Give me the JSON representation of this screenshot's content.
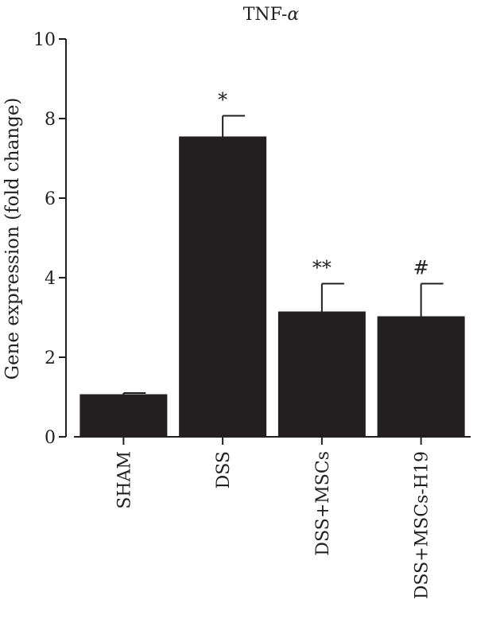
{
  "chart_data": {
    "type": "bar",
    "title_prefix": "TNF-",
    "title_symbol": "α",
    "ylabel": "Gene expression (fold change)",
    "xlabel": "",
    "ylim": [
      0,
      10
    ],
    "yticks": [
      0,
      2,
      4,
      6,
      8,
      10
    ],
    "categories": [
      "SHAM",
      "DSS",
      "DSS+MSCs",
      "DSS+MSCs-H19"
    ],
    "values": [
      1.07,
      7.55,
      3.15,
      3.03
    ],
    "errors": [
      0.03,
      0.52,
      0.7,
      0.82
    ],
    "annotations": [
      "",
      "*",
      "**",
      "#"
    ],
    "grid": false,
    "bar_color": "#231f20"
  }
}
